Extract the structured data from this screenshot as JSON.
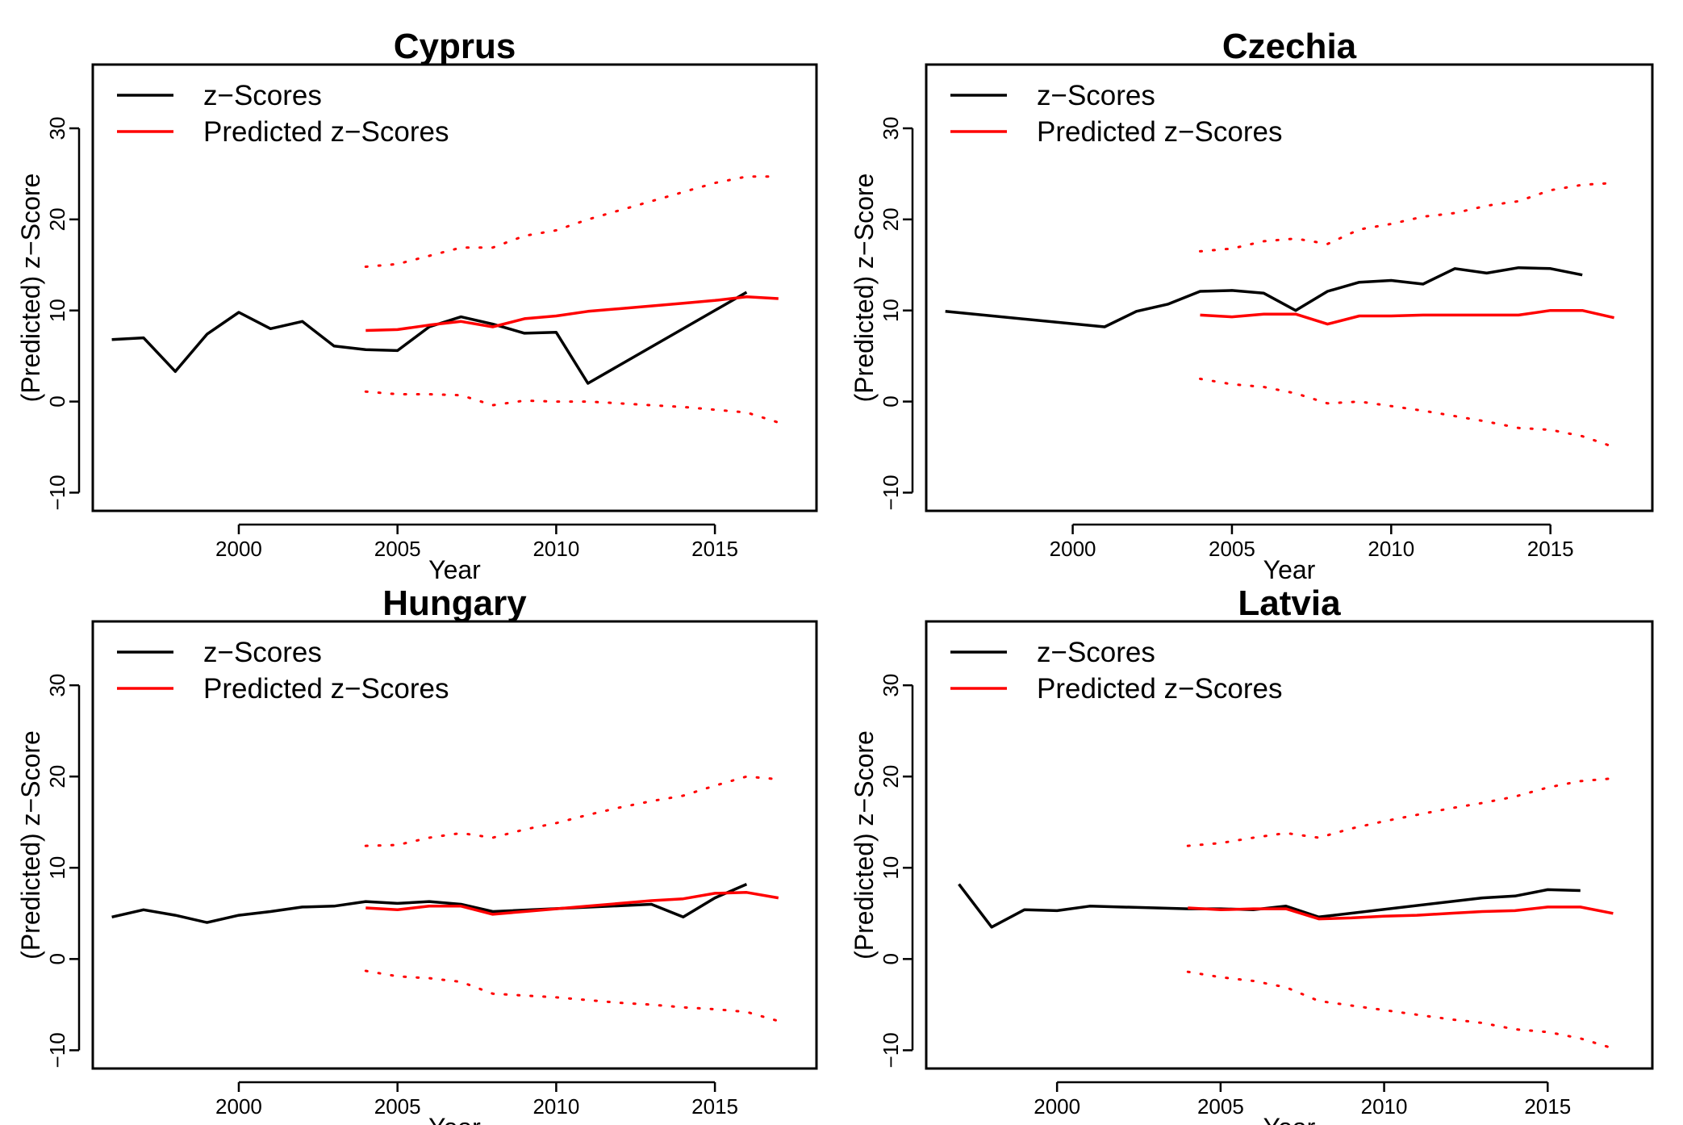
{
  "colors": {
    "observed": "#000000",
    "predicted": "#ff0000",
    "interval": "#ff0000"
  },
  "chart_data": [
    {
      "type": "line",
      "title": "Cyprus",
      "xlabel": "Year",
      "ylabel": "(Predicted) z−Score",
      "xlim": [
        1995.4,
        2018.2
      ],
      "ylim": [
        -12,
        37
      ],
      "x_ticks": [
        2000,
        2005,
        2010,
        2015
      ],
      "x_tick_labels": [
        "2000",
        "2005",
        "2010",
        "2015"
      ],
      "y_ticks": [
        -10,
        0,
        10,
        20,
        30
      ],
      "y_tick_labels": [
        "−10",
        "0",
        "10",
        "20",
        "30"
      ],
      "legend": {
        "position": "top-left",
        "entries": [
          "z−Scores",
          "Predicted z−Scores"
        ]
      },
      "series": [
        {
          "name": "z−Scores",
          "style": "solid",
          "color": "#000000",
          "x": [
            1996,
            1997,
            1998,
            1999,
            2000,
            2001,
            2002,
            2003,
            2004,
            2005,
            2006,
            2007,
            2008,
            2009,
            2010,
            2011,
            2016
          ],
          "y": [
            6.8,
            7.0,
            3.3,
            7.4,
            9.8,
            8.0,
            8.8,
            6.1,
            5.7,
            5.6,
            8.2,
            9.3,
            8.5,
            7.5,
            7.6,
            2.0,
            12.0
          ]
        },
        {
          "name": "Predicted z−Scores",
          "style": "solid",
          "color": "#ff0000",
          "x": [
            2004,
            2005,
            2006,
            2007,
            2008,
            2009,
            2010,
            2011,
            2012,
            2013,
            2014,
            2015,
            2016,
            2017
          ],
          "y": [
            7.8,
            7.9,
            8.4,
            8.8,
            8.2,
            9.1,
            9.4,
            9.9,
            10.2,
            10.5,
            10.8,
            11.1,
            11.5,
            11.3
          ]
        },
        {
          "style": "dotted",
          "color": "#ff0000",
          "x": [
            2004,
            2005,
            2006,
            2007,
            2008,
            2009,
            2010,
            2011,
            2012,
            2013,
            2014,
            2015,
            2016,
            2017
          ],
          "y": [
            14.8,
            15.1,
            16.0,
            16.9,
            16.9,
            18.2,
            18.8,
            20.0,
            21.0,
            22.0,
            23.0,
            24.0,
            24.7,
            24.7
          ]
        },
        {
          "style": "dotted",
          "color": "#ff0000",
          "x": [
            2004,
            2005,
            2006,
            2007,
            2008,
            2009,
            2010,
            2011,
            2012,
            2013,
            2014,
            2015,
            2016,
            2017
          ],
          "y": [
            1.1,
            0.8,
            0.8,
            0.7,
            -0.4,
            0.1,
            0.0,
            0.0,
            -0.2,
            -0.4,
            -0.6,
            -0.9,
            -1.2,
            -2.3
          ]
        }
      ]
    },
    {
      "type": "line",
      "title": "Czechia",
      "xlabel": "Year",
      "ylabel": "(Predicted) z−Score",
      "xlim": [
        1995.4,
        2018.2
      ],
      "ylim": [
        -12,
        37
      ],
      "x_ticks": [
        2000,
        2005,
        2010,
        2015
      ],
      "x_tick_labels": [
        "2000",
        "2005",
        "2010",
        "2015"
      ],
      "y_ticks": [
        -10,
        0,
        10,
        20,
        30
      ],
      "y_tick_labels": [
        "−10",
        "0",
        "10",
        "20",
        "30"
      ],
      "legend": {
        "position": "top-left",
        "entries": [
          "z−Scores",
          "Predicted z−Scores"
        ]
      },
      "series": [
        {
          "name": "z−Scores",
          "style": "solid",
          "color": "#000000",
          "x": [
            1996,
            2001,
            2002,
            2003,
            2004,
            2005,
            2006,
            2007,
            2008,
            2009,
            2010,
            2011,
            2012,
            2013,
            2014,
            2015,
            2016
          ],
          "y": [
            9.9,
            8.2,
            9.9,
            10.7,
            12.1,
            12.2,
            11.9,
            10.0,
            12.1,
            13.1,
            13.3,
            12.9,
            14.6,
            14.1,
            14.7,
            14.6,
            13.9
          ]
        },
        {
          "name": "Predicted z−Scores",
          "style": "solid",
          "color": "#ff0000",
          "x": [
            2004,
            2005,
            2006,
            2007,
            2008,
            2009,
            2010,
            2011,
            2012,
            2013,
            2014,
            2015,
            2016,
            2017
          ],
          "y": [
            9.5,
            9.3,
            9.6,
            9.6,
            8.5,
            9.4,
            9.4,
            9.5,
            9.5,
            9.5,
            9.5,
            10.0,
            10.0,
            9.2
          ]
        },
        {
          "style": "dotted",
          "color": "#ff0000",
          "x": [
            2004,
            2005,
            2006,
            2007,
            2008,
            2009,
            2010,
            2011,
            2012,
            2013,
            2014,
            2015,
            2016,
            2017
          ],
          "y": [
            16.5,
            16.8,
            17.6,
            17.9,
            17.3,
            18.9,
            19.5,
            20.3,
            20.7,
            21.5,
            22.0,
            23.2,
            23.8,
            24.0
          ]
        },
        {
          "style": "dotted",
          "color": "#ff0000",
          "x": [
            2004,
            2005,
            2006,
            2007,
            2008,
            2009,
            2010,
            2011,
            2012,
            2013,
            2014,
            2015,
            2016,
            2017
          ],
          "y": [
            2.5,
            1.9,
            1.6,
            0.9,
            -0.2,
            0.0,
            -0.5,
            -1.0,
            -1.6,
            -2.2,
            -2.9,
            -3.1,
            -3.8,
            -5.0
          ]
        }
      ]
    },
    {
      "type": "line",
      "title": "Hungary",
      "xlabel": "Year",
      "ylabel": "(Predicted) z−Score",
      "xlim": [
        1995.4,
        2018.2
      ],
      "ylim": [
        -12,
        37
      ],
      "x_ticks": [
        2000,
        2005,
        2010,
        2015
      ],
      "x_tick_labels": [
        "2000",
        "2005",
        "2010",
        "2015"
      ],
      "y_ticks": [
        -10,
        0,
        10,
        20,
        30
      ],
      "y_tick_labels": [
        "−10",
        "0",
        "10",
        "20",
        "30"
      ],
      "legend": {
        "position": "top-left",
        "entries": [
          "z−Scores",
          "Predicted z−Scores"
        ]
      },
      "series": [
        {
          "name": "z−Scores",
          "style": "solid",
          "color": "#000000",
          "x": [
            1996,
            1997,
            1998,
            1999,
            2000,
            2001,
            2002,
            2003,
            2004,
            2005,
            2006,
            2007,
            2008,
            2013,
            2014,
            2015,
            2016
          ],
          "y": [
            4.6,
            5.4,
            4.8,
            4.0,
            4.8,
            5.2,
            5.7,
            5.8,
            6.3,
            6.1,
            6.3,
            6.0,
            5.2,
            6.0,
            4.6,
            6.7,
            8.2
          ]
        },
        {
          "name": "Predicted z−Scores",
          "style": "solid",
          "color": "#ff0000",
          "x": [
            2004,
            2005,
            2006,
            2007,
            2008,
            2009,
            2010,
            2011,
            2012,
            2013,
            2014,
            2015,
            2016,
            2017
          ],
          "y": [
            5.6,
            5.4,
            5.8,
            5.8,
            4.9,
            5.2,
            5.5,
            5.8,
            6.1,
            6.4,
            6.6,
            7.2,
            7.3,
            6.7
          ]
        },
        {
          "style": "dotted",
          "color": "#ff0000",
          "x": [
            2004,
            2005,
            2006,
            2007,
            2008,
            2009,
            2010,
            2011,
            2012,
            2013,
            2014,
            2015,
            2016,
            2017
          ],
          "y": [
            12.4,
            12.5,
            13.3,
            13.8,
            13.3,
            14.2,
            14.9,
            15.8,
            16.6,
            17.3,
            17.9,
            19.0,
            20.0,
            19.7
          ]
        },
        {
          "style": "dotted",
          "color": "#ff0000",
          "x": [
            2004,
            2005,
            2006,
            2007,
            2008,
            2009,
            2010,
            2011,
            2012,
            2013,
            2014,
            2015,
            2016,
            2017
          ],
          "y": [
            -1.3,
            -1.9,
            -2.1,
            -2.5,
            -3.8,
            -4.0,
            -4.2,
            -4.5,
            -4.8,
            -5.0,
            -5.3,
            -5.5,
            -5.8,
            -6.8
          ]
        }
      ]
    },
    {
      "type": "line",
      "title": "Latvia",
      "xlabel": "Year",
      "ylabel": "(Predicted) z−Score",
      "xlim": [
        1996.0,
        2018.2
      ],
      "ylim": [
        -12,
        37
      ],
      "x_ticks": [
        2000,
        2005,
        2010,
        2015
      ],
      "x_tick_labels": [
        "2000",
        "2005",
        "2010",
        "2015"
      ],
      "y_ticks": [
        -10,
        0,
        10,
        20,
        30
      ],
      "y_tick_labels": [
        "−10",
        "0",
        "10",
        "20",
        "30"
      ],
      "legend": {
        "position": "top-left",
        "entries": [
          "z−Scores",
          "Predicted z−Scores"
        ]
      },
      "series": [
        {
          "name": "z−Scores",
          "style": "solid",
          "color": "#000000",
          "x": [
            1997,
            1998,
            1999,
            2000,
            2001,
            2004,
            2005,
            2006,
            2007,
            2008,
            2013,
            2014,
            2015,
            2016
          ],
          "y": [
            8.2,
            3.5,
            5.4,
            5.3,
            5.8,
            5.5,
            5.5,
            5.4,
            5.8,
            4.6,
            6.7,
            6.9,
            7.6,
            7.5
          ]
        },
        {
          "name": "Predicted z−Scores",
          "style": "solid",
          "color": "#ff0000",
          "x": [
            2004,
            2005,
            2006,
            2007,
            2008,
            2009,
            2010,
            2011,
            2012,
            2013,
            2014,
            2015,
            2016,
            2017
          ],
          "y": [
            5.6,
            5.4,
            5.5,
            5.5,
            4.4,
            4.5,
            4.7,
            4.8,
            5.0,
            5.2,
            5.3,
            5.7,
            5.7,
            5.0
          ]
        },
        {
          "style": "dotted",
          "color": "#ff0000",
          "x": [
            2004,
            2005,
            2006,
            2007,
            2008,
            2009,
            2010,
            2011,
            2012,
            2013,
            2014,
            2015,
            2016,
            2017
          ],
          "y": [
            12.4,
            12.7,
            13.3,
            13.8,
            13.3,
            14.3,
            15.1,
            15.8,
            16.5,
            17.1,
            17.8,
            18.8,
            19.5,
            19.8
          ]
        },
        {
          "style": "dotted",
          "color": "#ff0000",
          "x": [
            2004,
            2005,
            2006,
            2007,
            2008,
            2009,
            2010,
            2011,
            2012,
            2013,
            2014,
            2015,
            2016,
            2017
          ],
          "y": [
            -1.4,
            -2.0,
            -2.4,
            -3.1,
            -4.6,
            -5.1,
            -5.6,
            -6.1,
            -6.6,
            -7.0,
            -7.7,
            -8.0,
            -8.7,
            -9.8
          ]
        }
      ]
    }
  ]
}
